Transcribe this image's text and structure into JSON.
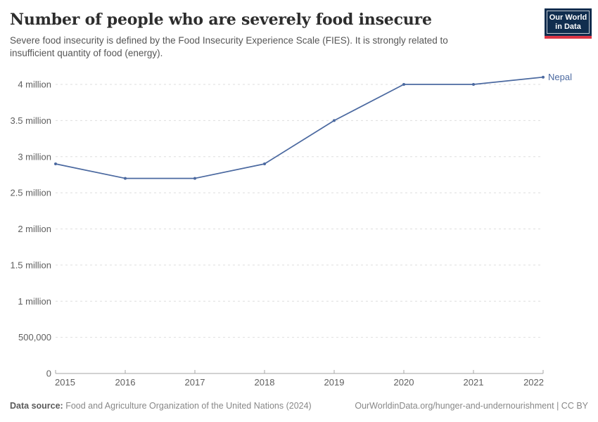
{
  "header": {
    "title": "Number of people who are severely food insecure",
    "subtitle_lines": {
      "0": "Severe food insecurity is defined by the Food Insecurity Experience Scale (FIES). It is strongly related to",
      "1": "insufficient quantity of food (energy)."
    },
    "logo": {
      "line1": "Our World",
      "line2": "in Data"
    }
  },
  "chart_data": {
    "type": "line",
    "title": "Number of people who are severely food insecure",
    "x": [
      2015,
      2016,
      2017,
      2018,
      2019,
      2020,
      2021,
      2022
    ],
    "series": [
      {
        "name": "Nepal",
        "color": "#4b69a0",
        "values": [
          2900000,
          2700000,
          2700000,
          2900000,
          3500000,
          4000000,
          4000000,
          4100000
        ]
      }
    ],
    "y_ticks": [
      {
        "value": 0,
        "label": "0"
      },
      {
        "value": 500000,
        "label": "500,000"
      },
      {
        "value": 1000000,
        "label": "1 million"
      },
      {
        "value": 1500000,
        "label": "1.5 million"
      },
      {
        "value": 2000000,
        "label": "2 million"
      },
      {
        "value": 2500000,
        "label": "2.5 million"
      },
      {
        "value": 3000000,
        "label": "3 million"
      },
      {
        "value": 3500000,
        "label": "3.5 million"
      },
      {
        "value": 4000000,
        "label": "4 million"
      }
    ],
    "x_ticks": [
      "2015",
      "2016",
      "2017",
      "2018",
      "2019",
      "2020",
      "2021",
      "2022"
    ],
    "ylim": [
      0,
      4000000
    ],
    "grid": true,
    "legend_position": "end-of-line"
  },
  "footer": {
    "source_label": "Data source:",
    "source_text": " Food and Agriculture Organization of the United Nations (2024)",
    "link_text": "OurWorldinData.org/hunger-and-undernourishment | CC BY"
  },
  "colors": {
    "series_blue": "#4b69a0",
    "logo_background": "#102d4e",
    "logo_red_bar": "#dc3545",
    "gridline": "#dedede",
    "axis": "#a5a5a5",
    "tick_text": "#5f5f5f"
  }
}
